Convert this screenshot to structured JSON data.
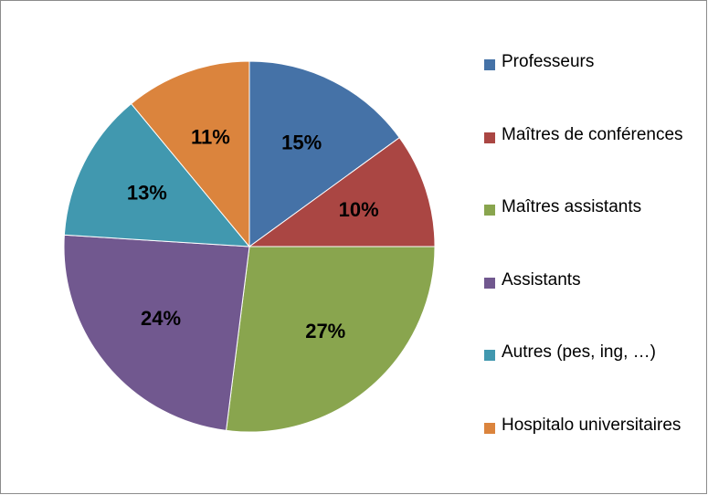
{
  "chart_data": {
    "type": "pie",
    "categories": [
      "Professeurs",
      "Maîtres de conférences",
      "Maîtres assistants",
      "Assistants",
      "Autres (pes, ing, …)",
      "Hospitalo universitaires"
    ],
    "values": [
      15,
      10,
      27,
      24,
      13,
      11
    ],
    "value_labels": [
      "15%",
      "10%",
      "27%",
      "24%",
      "13%",
      "11%"
    ],
    "colors": [
      "#4572a7",
      "#aa4643",
      "#89a54e",
      "#71588f",
      "#4198af",
      "#db843d"
    ],
    "legend": "right"
  }
}
